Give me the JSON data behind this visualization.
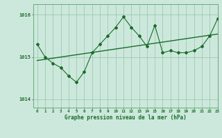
{
  "title": "Graphe pression niveau de la mer (hPa)",
  "background_color": "#cce8dc",
  "grid_color": "#a0c8b0",
  "line_color": "#1a6b2a",
  "xlim": [
    -0.5,
    23
  ],
  "ylim": [
    1013.8,
    1016.25
  ],
  "yticks": [
    1014,
    1015,
    1016
  ],
  "xticks": [
    0,
    1,
    2,
    3,
    4,
    5,
    6,
    7,
    8,
    9,
    10,
    11,
    12,
    13,
    14,
    15,
    16,
    17,
    18,
    19,
    20,
    21,
    22,
    23
  ],
  "pressure_data": [
    1015.3,
    1015.0,
    1014.85,
    1014.75,
    1014.55,
    1014.4,
    1014.65,
    1015.1,
    1015.3,
    1015.5,
    1015.7,
    1015.95,
    1015.7,
    1015.5,
    1015.25,
    1015.75,
    1015.1,
    1015.15,
    1015.1,
    1015.1,
    1015.15,
    1015.25,
    1015.5,
    1015.9
  ],
  "trend_x": [
    0,
    23
  ],
  "trend_y": [
    1014.93,
    1015.55
  ],
  "title_fontsize": 5.5,
  "xlabel_tick_fontsize": 4.2,
  "ylabel_tick_fontsize": 5.0
}
